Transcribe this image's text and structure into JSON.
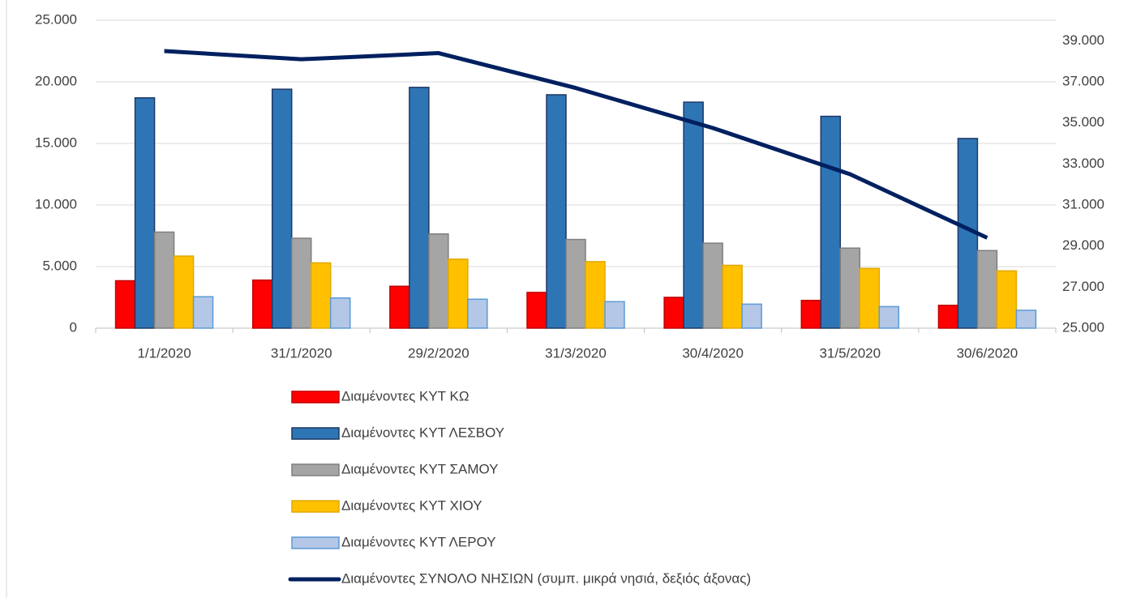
{
  "chart_data": {
    "type": "bar",
    "categories": [
      "1/1/2020",
      "31/1/2020",
      "29/2/2020",
      "31/3/2020",
      "30/4/2020",
      "31/5/2020",
      "30/6/2020"
    ],
    "series": [
      {
        "name": "Διαμένοντες ΚΥΤ ΚΩ",
        "color": "#ff0000",
        "values": [
          3850,
          3900,
          3400,
          2900,
          2500,
          2250,
          1850
        ]
      },
      {
        "name": "Διαμένοντες ΚΥΤ ΛΕΣΒΟΥ",
        "color": "#2e75b6",
        "values": [
          18700,
          19400,
          19550,
          18950,
          18350,
          17200,
          15400
        ]
      },
      {
        "name": "Διαμένοντες ΚΥΤ ΣΑΜΟΥ",
        "color": "#a5a5a5",
        "values": [
          7800,
          7300,
          7650,
          7200,
          6900,
          6500,
          6300
        ]
      },
      {
        "name": "Διαμένοντες ΚΥΤ ΧΙΟΥ",
        "color": "#ffc000",
        "values": [
          5850,
          5300,
          5600,
          5400,
          5100,
          4850,
          4650
        ]
      },
      {
        "name": "Διαμένοντες ΚΥΤ ΛΕΡΟΥ",
        "color": "#b4c7e7",
        "values": [
          2550,
          2450,
          2350,
          2150,
          1950,
          1750,
          1450
        ]
      },
      {
        "name": "Διαμένοντες ΣΥΝΟΛΟ ΝΗΣΙΩΝ (συμπ. μικρά νησιά, δεξιός άξονας)",
        "color": "#002060",
        "type": "line",
        "axis": "y2",
        "values": [
          38500,
          38100,
          38400,
          36700,
          34750,
          32500,
          29400
        ]
      }
    ],
    "ylim": [
      0,
      25000
    ],
    "yticks": [
      0,
      {
        "value": 5000,
        "label": "5.000"
      },
      {
        "value": 10000,
        "label": "10.000"
      },
      {
        "value": 15000,
        "label": "15.000"
      },
      {
        "value": 20000,
        "label": "20.000"
      },
      {
        "value": 25000,
        "label": "25.000"
      }
    ],
    "y2lim": [
      25000,
      40000
    ],
    "y2ticks": [
      {
        "value": 25000,
        "label": "25.000"
      },
      {
        "value": 27000,
        "label": "27.000"
      },
      {
        "value": 29000,
        "label": "29.000"
      },
      {
        "value": 31000,
        "label": "31.000"
      },
      {
        "value": 33000,
        "label": "33.000"
      },
      {
        "value": 35000,
        "label": "35.000"
      },
      {
        "value": 37000,
        "label": "37.000"
      },
      {
        "value": 39000,
        "label": "39.000"
      }
    ],
    "grid": true,
    "legend": "bottom"
  }
}
